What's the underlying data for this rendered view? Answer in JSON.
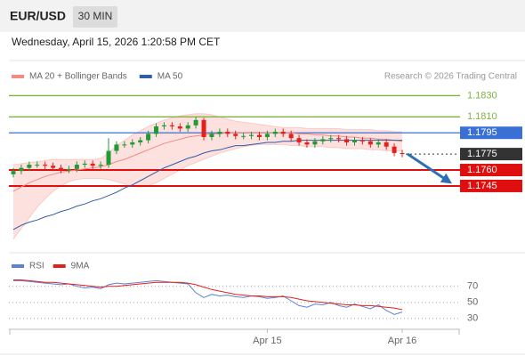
{
  "header": {
    "title": "EUR/USD",
    "timeframe": "30 MIN",
    "timestamp": "Wednesday, April 15, 2026 1:20:58 PM CET",
    "source": "Research © 2026 Trading Central"
  },
  "chart_data": [
    {
      "type": "candlestick",
      "categories": [
        null,
        null,
        null,
        null,
        null,
        null,
        null,
        null,
        null,
        null,
        null,
        null,
        null,
        null,
        null,
        null,
        null,
        null,
        null,
        null,
        null,
        null,
        null,
        null,
        null,
        null,
        null,
        null,
        null,
        null,
        null,
        null,
        "Apr 15",
        null,
        null,
        null,
        null,
        null,
        null,
        null,
        null,
        null,
        null,
        null,
        null,
        null,
        null,
        null,
        null,
        "Apr 16"
      ],
      "open": [
        1.1756,
        1.1759,
        1.1762,
        1.1765,
        1.1765,
        1.1764,
        1.1762,
        1.176,
        1.1761,
        1.1765,
        1.1766,
        1.1764,
        1.1765,
        1.1778,
        1.1784,
        1.1784,
        1.1786,
        1.1788,
        1.1794,
        1.1801,
        1.1802,
        1.1801,
        1.1799,
        1.1802,
        1.1807,
        1.1791,
        1.1794,
        1.1796,
        1.1794,
        1.1792,
        1.1792,
        1.1793,
        1.1791,
        1.1794,
        1.1796,
        1.1794,
        1.179,
        1.1786,
        1.1784,
        1.1787,
        1.1789,
        1.179,
        1.1789,
        1.1786,
        1.1788,
        1.1787,
        1.1784,
        1.1786,
        1.1782,
        1.1776
      ],
      "high": [
        1.1762,
        1.1765,
        1.1768,
        1.1768,
        1.1768,
        1.1767,
        1.1765,
        1.1764,
        1.1768,
        1.1769,
        1.1769,
        1.1768,
        1.179,
        1.1787,
        1.1787,
        1.1789,
        1.1791,
        1.1797,
        1.1804,
        1.1805,
        1.1805,
        1.1804,
        1.1805,
        1.181,
        1.1809,
        1.1797,
        1.1799,
        1.1799,
        1.1797,
        1.1795,
        1.1796,
        1.1796,
        1.1797,
        1.1799,
        1.1799,
        1.1797,
        1.1793,
        1.1789,
        1.179,
        1.1792,
        1.1793,
        1.1793,
        1.1792,
        1.1791,
        1.1791,
        1.179,
        1.1789,
        1.1789,
        1.1785,
        1.1779
      ],
      "low": [
        1.1753,
        1.1756,
        1.1759,
        1.1762,
        1.1761,
        1.1759,
        1.1757,
        1.1757,
        1.1758,
        1.1762,
        1.1761,
        1.1761,
        1.1762,
        1.1775,
        1.1781,
        1.1781,
        1.1783,
        1.1785,
        1.1791,
        1.1798,
        1.1798,
        1.1796,
        1.1796,
        1.1799,
        1.1788,
        1.1788,
        1.1791,
        1.1791,
        1.1789,
        1.1789,
        1.1789,
        1.1788,
        1.1788,
        1.1791,
        1.1791,
        1.1787,
        1.1783,
        1.1781,
        1.1781,
        1.1784,
        1.1786,
        1.1786,
        1.1783,
        1.1783,
        1.1784,
        1.1781,
        1.1781,
        1.1779,
        1.1773,
        1.1772
      ],
      "close": [
        1.1759,
        1.1762,
        1.1765,
        1.1765,
        1.1764,
        1.1762,
        1.176,
        1.1761,
        1.1765,
        1.1766,
        1.1764,
        1.1765,
        1.1778,
        1.1784,
        1.1784,
        1.1786,
        1.1788,
        1.1794,
        1.1801,
        1.1802,
        1.1801,
        1.1799,
        1.1802,
        1.1807,
        1.1791,
        1.1794,
        1.1796,
        1.1794,
        1.1792,
        1.1792,
        1.1793,
        1.1791,
        1.1794,
        1.1796,
        1.1794,
        1.179,
        1.1786,
        1.1784,
        1.1787,
        1.1789,
        1.179,
        1.1789,
        1.1786,
        1.1788,
        1.1787,
        1.1784,
        1.1786,
        1.1782,
        1.1776,
        1.1775
      ],
      "up_color": "#1f9a35",
      "down_color": "#e3211c",
      "ylim": [
        1.1683,
        1.1863
      ],
      "overlays": [
        {
          "name": "MA 20 + Bollinger Bands",
          "color": "#f28b82",
          "band_color": "#fde1df",
          "values": [
            1.174,
            1.1744,
            1.1748,
            1.1751,
            1.1754,
            1.1756,
            1.1758,
            1.1759,
            1.176,
            1.1761,
            1.1762,
            1.1763,
            1.1765,
            1.1768,
            1.177,
            1.1773,
            1.1776,
            1.1779,
            1.1782,
            1.1785,
            1.1787,
            1.1789,
            1.1791,
            1.1792,
            1.1793,
            1.1794,
            1.1794,
            1.1795,
            1.1795,
            1.1795,
            1.1795,
            1.1795,
            1.1795,
            1.1795,
            1.1795,
            1.1795,
            1.1794,
            1.1794,
            1.1793,
            1.1793,
            1.1792,
            1.1792,
            1.1791,
            1.1791,
            1.179,
            1.179,
            1.1789,
            1.1789,
            1.1788,
            1.1787
          ],
          "upper": [
            1.1765,
            1.1766,
            1.1767,
            1.1768,
            1.1769,
            1.177,
            1.177,
            1.177,
            1.177,
            1.177,
            1.177,
            1.1771,
            1.1776,
            1.1783,
            1.1788,
            1.1793,
            1.1797,
            1.1801,
            1.1804,
            1.1807,
            1.1809,
            1.1811,
            1.1812,
            1.1813,
            1.1813,
            1.1812,
            1.181,
            1.1808,
            1.1806,
            1.1805,
            1.1804,
            1.1803,
            1.1802,
            1.1801,
            1.18,
            1.18,
            1.18,
            1.1799,
            1.1799,
            1.1799,
            1.1799,
            1.1799,
            1.1798,
            1.1798,
            1.1798,
            1.1798,
            1.1797,
            1.1797,
            1.1796,
            1.1796
          ],
          "lower": [
            1.1695,
            1.1705,
            1.1715,
            1.1725,
            1.1733,
            1.174,
            1.1745,
            1.1749,
            1.1751,
            1.1752,
            1.1752,
            1.1752,
            1.1751,
            1.1749,
            1.1747,
            1.1745,
            1.1744,
            1.1745,
            1.1748,
            1.1752,
            1.1756,
            1.176,
            1.1764,
            1.1767,
            1.177,
            1.1773,
            1.1776,
            1.1778,
            1.178,
            1.1782,
            1.1783,
            1.1784,
            1.1784,
            1.1784,
            1.1784,
            1.1783,
            1.1783,
            1.1782,
            1.1782,
            1.1782,
            1.1781,
            1.1781,
            1.178,
            1.178,
            1.178,
            1.1779,
            1.1779,
            1.1778,
            1.1778,
            1.1778
          ]
        },
        {
          "name": "MA 50",
          "color": "#2f5da6",
          "values": [
            1.1704,
            1.1708,
            1.1711,
            1.1713,
            1.1716,
            1.1718,
            1.1721,
            1.1723,
            1.1726,
            1.1728,
            1.1731,
            1.1733,
            1.1736,
            1.1739,
            1.1743,
            1.1746,
            1.175,
            1.1754,
            1.1758,
            1.1762,
            1.1765,
            1.1768,
            1.1771,
            1.1773,
            1.1776,
            1.1778,
            1.1779,
            1.1781,
            1.1783,
            1.1783,
            1.1784,
            1.1785,
            1.1786,
            1.1786,
            1.1787,
            1.1787,
            1.1788,
            1.1788,
            1.1788,
            1.1788,
            1.1788,
            1.1788,
            1.1788,
            1.1788,
            1.1788,
            1.1788,
            1.1788,
            1.1788,
            1.1788,
            1.1788
          ]
        }
      ],
      "levels": [
        {
          "price": {
            "value": 1.183,
            "label": "1.1830"
          },
          "color": "#7cb342",
          "label_box": false,
          "line": "solid"
        },
        {
          "price": {
            "value": 1.181,
            "label": "1.1810"
          },
          "color": "#7cb342",
          "label_box": false,
          "line": "solid"
        },
        {
          "price": 1.1795,
          "color": "#3a70d6",
          "label_box": true,
          "line": "solid"
        },
        {
          "price": 1.1775,
          "color": "#333333",
          "label_box": true,
          "line": "dotted"
        },
        {
          "price": {
            "value": 1.176,
            "label": "1.1760"
          },
          "color": "#e00f0f",
          "label_box": true,
          "line": "solid"
        },
        {
          "price": 1.1745,
          "color": "#e00f0f",
          "label_box": true,
          "line": "solid"
        }
      ]
    },
    {
      "type": "line",
      "series": [
        {
          "name": "RSI",
          "color": "#5b82d6",
          "values": [
            77,
            77,
            76,
            75,
            74,
            73,
            72,
            73,
            70,
            68,
            69,
            67,
            72,
            74,
            73,
            74,
            75,
            76,
            77,
            76,
            75,
            74,
            73,
            62,
            56,
            60,
            58,
            59,
            57,
            56,
            58,
            57,
            55,
            56,
            58,
            52,
            46,
            44,
            48,
            47,
            50,
            46,
            44,
            48,
            45,
            42,
            47,
            40,
            35,
            38
          ]
        },
        {
          "name": "9MA",
          "color": "#e3211c",
          "values": [
            78,
            78,
            77,
            76,
            75,
            75,
            74,
            73,
            72,
            71,
            70,
            69,
            70,
            70,
            71,
            72,
            73,
            74,
            75,
            75,
            75,
            75,
            74,
            72,
            69,
            66,
            64,
            62,
            60,
            59,
            58,
            58,
            57,
            57,
            57,
            56,
            54,
            52,
            51,
            50,
            49,
            48,
            47,
            47,
            46,
            46,
            45,
            44,
            43,
            41
          ]
        }
      ],
      "ylim": [
        22,
        83
      ],
      "yticks": [
        70,
        50,
        30
      ],
      "grid": true
    }
  ]
}
